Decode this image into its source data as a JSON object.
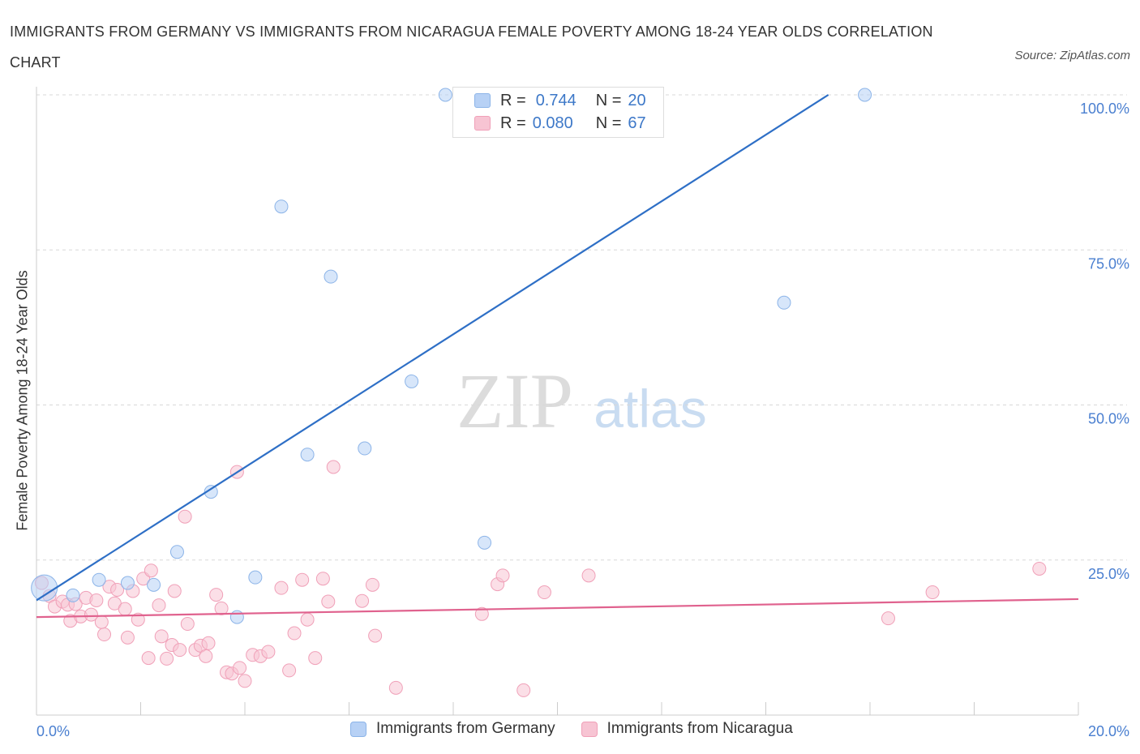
{
  "title": "IMMIGRANTS FROM GERMANY VS IMMIGRANTS FROM NICARAGUA FEMALE POVERTY AMONG 18-24 YEAR OLDS CORRELATION CHART",
  "source": "Source: ZipAtlas.com",
  "watermark": {
    "zip": "ZIP",
    "atlas": "atlas"
  },
  "legend": {
    "rows": [
      {
        "r_label": "R =",
        "r_value": "0.744",
        "n_label": "N =",
        "n_value": "20"
      },
      {
        "r_label": "R =",
        "r_value": "0.080",
        "n_label": "N =",
        "n_value": "67"
      }
    ]
  },
  "colors": {
    "germany_fill": "#b7d1f5",
    "germany_stroke": "#8cb4e8",
    "germany_line": "#2e6fc6",
    "nicaragua_fill": "#f7c4d3",
    "nicaragua_stroke": "#f0a0b8",
    "nicaragua_line": "#e0628e",
    "tick_text": "#4a7fd0",
    "grid": "#d8d8d8"
  },
  "chart_data": {
    "type": "scatter",
    "title": "IMMIGRANTS FROM GERMANY VS IMMIGRANTS FROM NICARAGUA FEMALE POVERTY AMONG 18-24 YEAR OLDS CORRELATION CHART",
    "xlabel": "",
    "ylabel": "Female Poverty Among 18-24 Year Olds",
    "xlim": [
      0,
      20
    ],
    "ylim": [
      0,
      100
    ],
    "x_tick_labels": [
      {
        "value": 0,
        "label": "0.0%"
      },
      {
        "value": 20,
        "label": "20.0%"
      }
    ],
    "y_tick_labels": [
      {
        "value": 100,
        "label": "100.0%"
      },
      {
        "value": 75,
        "label": "75.0%"
      },
      {
        "value": 50,
        "label": "50.0%"
      },
      {
        "value": 25,
        "label": "25.0%"
      }
    ],
    "grid": true,
    "legend_position": "bottom",
    "series": [
      {
        "name": "Immigrants from Germany",
        "r": 0.744,
        "n": 20,
        "trend": [
          [
            0.0,
            18.5
          ],
          [
            15.2,
            100
          ]
        ],
        "points": [
          [
            0.15,
            20.5
          ],
          [
            0.7,
            19.3
          ],
          [
            1.2,
            21.8
          ],
          [
            1.75,
            21.3
          ],
          [
            2.25,
            21.0
          ],
          [
            2.7,
            26.3
          ],
          [
            3.35,
            36.0
          ],
          [
            3.85,
            15.8
          ],
          [
            4.2,
            22.2
          ],
          [
            4.7,
            82.0
          ],
          [
            5.2,
            42.0
          ],
          [
            5.65,
            70.7
          ],
          [
            6.3,
            43.0
          ],
          [
            7.2,
            53.8
          ],
          [
            7.85,
            100
          ],
          [
            8.25,
            100
          ],
          [
            8.6,
            27.8
          ],
          [
            11.9,
            100
          ],
          [
            14.35,
            66.5
          ],
          [
            15.9,
            100
          ]
        ]
      },
      {
        "name": "Immigrants from Nicaragua",
        "r": 0.08,
        "n": 67,
        "trend": [
          [
            0.0,
            15.8
          ],
          [
            20.0,
            18.7
          ]
        ],
        "points": [
          [
            0.1,
            21.3
          ],
          [
            0.25,
            19.2
          ],
          [
            0.35,
            17.5
          ],
          [
            0.5,
            18.3
          ],
          [
            0.6,
            17.8
          ],
          [
            0.65,
            15.2
          ],
          [
            0.75,
            17.9
          ],
          [
            0.85,
            15.9
          ],
          [
            0.95,
            18.9
          ],
          [
            1.05,
            16.2
          ],
          [
            1.15,
            18.5
          ],
          [
            1.25,
            15.0
          ],
          [
            1.3,
            13.0
          ],
          [
            1.4,
            20.7
          ],
          [
            1.5,
            18.0
          ],
          [
            1.55,
            20.2
          ],
          [
            1.7,
            17.1
          ],
          [
            1.75,
            12.5
          ],
          [
            1.85,
            20.0
          ],
          [
            1.95,
            15.4
          ],
          [
            2.05,
            22.0
          ],
          [
            2.15,
            9.2
          ],
          [
            2.2,
            23.3
          ],
          [
            2.35,
            17.7
          ],
          [
            2.4,
            12.7
          ],
          [
            2.5,
            9.1
          ],
          [
            2.6,
            11.3
          ],
          [
            2.65,
            20.0
          ],
          [
            2.75,
            10.5
          ],
          [
            2.85,
            32.0
          ],
          [
            2.9,
            14.7
          ],
          [
            3.05,
            10.5
          ],
          [
            3.15,
            11.2
          ],
          [
            3.25,
            9.5
          ],
          [
            3.3,
            11.6
          ],
          [
            3.45,
            19.4
          ],
          [
            3.55,
            17.2
          ],
          [
            3.65,
            6.9
          ],
          [
            3.75,
            6.7
          ],
          [
            3.85,
            39.2
          ],
          [
            3.9,
            7.6
          ],
          [
            4.0,
            5.5
          ],
          [
            4.15,
            9.7
          ],
          [
            4.3,
            9.5
          ],
          [
            4.45,
            10.2
          ],
          [
            4.7,
            20.5
          ],
          [
            4.85,
            7.2
          ],
          [
            4.95,
            13.2
          ],
          [
            5.1,
            21.8
          ],
          [
            5.2,
            15.4
          ],
          [
            5.35,
            9.2
          ],
          [
            5.5,
            22.0
          ],
          [
            5.6,
            18.3
          ],
          [
            5.7,
            40.0
          ],
          [
            6.25,
            18.4
          ],
          [
            6.45,
            21.0
          ],
          [
            6.5,
            12.8
          ],
          [
            6.9,
            4.4
          ],
          [
            8.55,
            16.3
          ],
          [
            8.85,
            21.1
          ],
          [
            8.95,
            22.5
          ],
          [
            9.35,
            4.0
          ],
          [
            9.75,
            19.8
          ],
          [
            10.6,
            22.5
          ],
          [
            16.35,
            15.6
          ],
          [
            17.2,
            19.8
          ],
          [
            19.25,
            23.6
          ]
        ]
      }
    ]
  }
}
